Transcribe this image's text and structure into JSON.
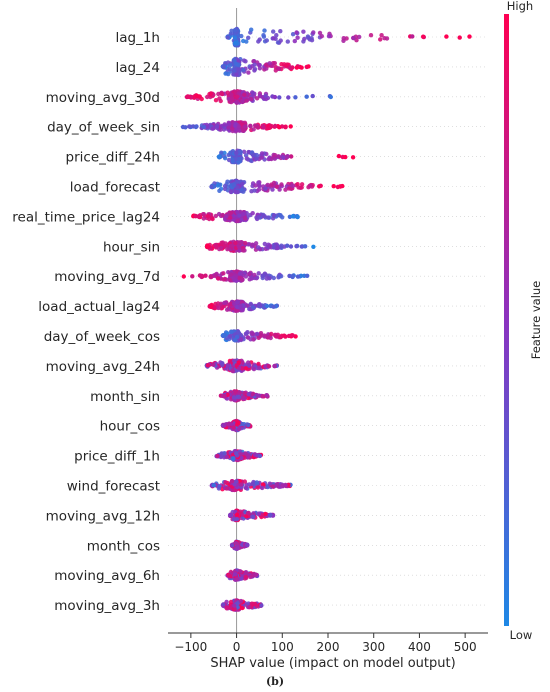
{
  "chart_data": {
    "type": "scatter",
    "subtype": "shap-beeswarm",
    "xlabel": "SHAP value (impact on model output)",
    "xlim": [
      -150,
      550
    ],
    "xticks": [
      -100,
      0,
      100,
      200,
      300,
      400,
      500
    ],
    "caption": "(b)",
    "colorbar": {
      "label": "Feature value",
      "high_label": "High",
      "low_label": "Low",
      "low_color": "#1e88e5",
      "high_color": "#ff0052"
    },
    "features": [
      {
        "name": "lag_1h",
        "min": -20,
        "max": 530,
        "dense_min": -15,
        "dense_max": 330,
        "spread": 7,
        "low_side": "left"
      },
      {
        "name": "lag_24",
        "min": -30,
        "max": 160,
        "dense_min": -25,
        "dense_max": 120,
        "spread": 7,
        "low_side": "left"
      },
      {
        "name": "moving_avg_30d",
        "min": -110,
        "max": 220,
        "dense_min": -95,
        "dense_max": 70,
        "spread": 5,
        "low_side": "right"
      },
      {
        "name": "day_of_week_sin",
        "min": -125,
        "max": 120,
        "dense_min": -80,
        "dense_max": 80,
        "spread": 4,
        "low_side": "left"
      },
      {
        "name": "price_diff_24h",
        "min": -40,
        "max": 255,
        "dense_min": -35,
        "dense_max": 110,
        "spread": 5,
        "low_side": "left"
      },
      {
        "name": "load_forecast",
        "min": -55,
        "max": 235,
        "dense_min": -50,
        "dense_max": 170,
        "spread": 5,
        "low_side": "left"
      },
      {
        "name": "real_time_price_lag24",
        "min": -100,
        "max": 135,
        "dense_min": -80,
        "dense_max": 100,
        "spread": 4,
        "low_side": "right"
      },
      {
        "name": "hour_sin",
        "min": -65,
        "max": 170,
        "dense_min": -60,
        "dense_max": 110,
        "spread": 4,
        "low_side": "right"
      },
      {
        "name": "moving_avg_7d",
        "min": -125,
        "max": 170,
        "dense_min": -60,
        "dense_max": 100,
        "spread": 4,
        "low_side": "right"
      },
      {
        "name": "load_actual_lag24",
        "min": -60,
        "max": 90,
        "dense_min": -55,
        "dense_max": 65,
        "spread": 4,
        "low_side": "right"
      },
      {
        "name": "day_of_week_cos",
        "min": -30,
        "max": 135,
        "dense_min": -25,
        "dense_max": 100,
        "spread": 4,
        "low_side": "left"
      },
      {
        "name": "moving_avg_24h",
        "min": -65,
        "max": 90,
        "dense_min": -60,
        "dense_max": 70,
        "spread": 5,
        "low_side": "mixed"
      },
      {
        "name": "month_sin",
        "min": -35,
        "max": 70,
        "dense_min": -25,
        "dense_max": 45,
        "spread": 4,
        "low_side": "mixed"
      },
      {
        "name": "hour_cos",
        "min": -30,
        "max": 30,
        "dense_min": -25,
        "dense_max": 25,
        "spread": 4,
        "low_side": "mixed"
      },
      {
        "name": "price_diff_1h",
        "min": -45,
        "max": 60,
        "dense_min": -35,
        "dense_max": 45,
        "spread": 4,
        "low_side": "mixed"
      },
      {
        "name": "wind_forecast",
        "min": -55,
        "max": 130,
        "dense_min": -45,
        "dense_max": 100,
        "spread": 4,
        "low_side": "mixed"
      },
      {
        "name": "moving_avg_12h",
        "min": -15,
        "max": 80,
        "dense_min": -12,
        "dense_max": 70,
        "spread": 4,
        "low_side": "mixed"
      },
      {
        "name": "month_cos",
        "min": -10,
        "max": 25,
        "dense_min": -8,
        "dense_max": 20,
        "spread": 3,
        "low_side": "mixed"
      },
      {
        "name": "moving_avg_6h",
        "min": -20,
        "max": 45,
        "dense_min": -15,
        "dense_max": 40,
        "spread": 4,
        "low_side": "mixed"
      },
      {
        "name": "moving_avg_3h",
        "min": -30,
        "max": 55,
        "dense_min": -25,
        "dense_max": 50,
        "spread": 4,
        "low_side": "mixed"
      }
    ]
  }
}
